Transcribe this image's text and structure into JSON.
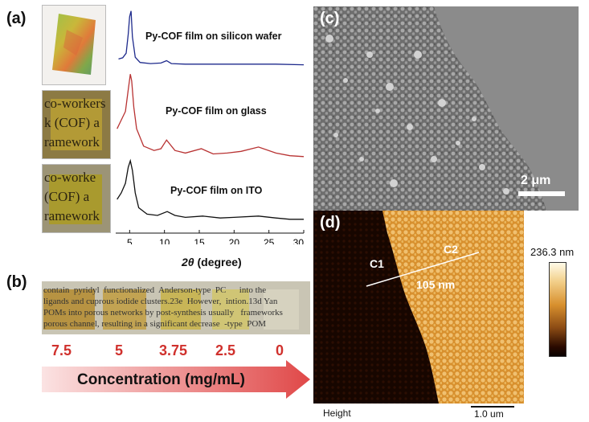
{
  "panel_a": {
    "label": "(a)",
    "photo_texts": [
      "co-workers\nk (COF) a\nramework",
      "co-worke\n(COF) a\nramework"
    ],
    "chart_data": {
      "type": "line",
      "xlabel_italic": "2θ",
      "xlabel_rest": " (degree)",
      "xlim": [
        3,
        30
      ],
      "x_ticks": [
        "5",
        "10",
        "15",
        "20",
        "25",
        "30"
      ],
      "series": [
        {
          "name": "Py-COF film on silicon wafer",
          "color": "#1e2a8c",
          "x": [
            3.4,
            4.0,
            4.5,
            4.8,
            5.0,
            5.2,
            5.4,
            5.8,
            6.5,
            8,
            9.5,
            10.3,
            11,
            13,
            15,
            18,
            22,
            26,
            30
          ],
          "y": [
            0.12,
            0.14,
            0.22,
            0.55,
            0.85,
            0.95,
            0.5,
            0.15,
            0.06,
            0.04,
            0.05,
            0.09,
            0.04,
            0.03,
            0.03,
            0.03,
            0.03,
            0.03,
            0.02
          ]
        },
        {
          "name": "Py-COF film on glass",
          "color": "#b83232",
          "x": [
            3.2,
            3.8,
            4.4,
            4.8,
            5.1,
            5.3,
            5.6,
            6.0,
            7,
            8.5,
            9.5,
            10.3,
            11.5,
            13,
            15.3,
            17,
            19,
            21,
            23.5,
            26,
            28,
            30
          ],
          "y": [
            0.35,
            0.45,
            0.55,
            0.8,
            0.98,
            0.9,
            0.6,
            0.35,
            0.15,
            0.1,
            0.12,
            0.22,
            0.1,
            0.07,
            0.12,
            0.06,
            0.07,
            0.09,
            0.14,
            0.07,
            0.04,
            0.03
          ]
        },
        {
          "name": "Py-COF film on ITO",
          "color": "#111111",
          "x": [
            3.2,
            3.8,
            4.4,
            4.8,
            5.1,
            5.4,
            5.8,
            6.3,
            7.5,
            9,
            10.4,
            11.5,
            13,
            15.5,
            18,
            20,
            23.5,
            26,
            28,
            30
          ],
          "y": [
            0.35,
            0.45,
            0.6,
            0.85,
            0.95,
            0.8,
            0.45,
            0.22,
            0.12,
            0.1,
            0.16,
            0.1,
            0.07,
            0.09,
            0.06,
            0.07,
            0.09,
            0.06,
            0.04,
            0.04
          ]
        }
      ]
    }
  },
  "panel_b": {
    "label": "(b)",
    "strip_text": "contain  pyridyl  functionalized  Anderson-type  PC      into the\nligands and cuprous iodide clusters.23e  However,  intion.13d Yan\nPOMs into porous networks by post-synthesis usually   frameworks\nporous channel, resulting in a significant decrease  -type  POM",
    "concentrations": [
      "7.5",
      "5",
      "3.75",
      "2.5",
      "0"
    ],
    "arrow_label": "Concentration (mg/mL)"
  },
  "panel_c": {
    "label": "(c)",
    "scale_bar": "2 μm"
  },
  "panel_d": {
    "label": "(d)",
    "point_c1": "C1",
    "point_c2": "C2",
    "step_height": "105 nm",
    "colorbar_max": "236.3 nm",
    "channel": "Height",
    "scale_bar": "1.0 um"
  },
  "colors": {
    "arrow_start": "#fbe3e3",
    "arrow_end": "#e04848",
    "sem_gray": "#8a8a8a",
    "afm_gold": "#e3a34a"
  }
}
